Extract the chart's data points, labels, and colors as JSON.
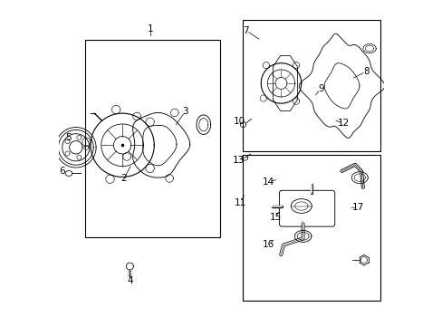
{
  "bg_color": "#ffffff",
  "line_color": "#000000",
  "fig_width": 4.89,
  "fig_height": 3.6,
  "dpi": 100,
  "font_size": 7.5
}
